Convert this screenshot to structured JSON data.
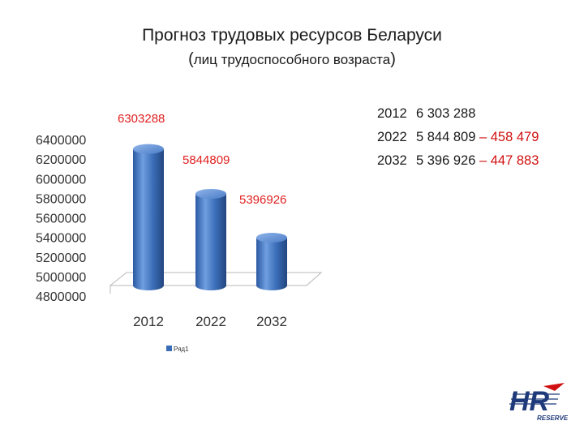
{
  "title": "Прогноз трудовых ресурсов Беларуси",
  "subtitle": "лиц трудоспособного возраста",
  "chart_data": {
    "type": "bar",
    "categories": [
      "2012",
      "2022",
      "2032"
    ],
    "series": [
      {
        "name": "Ряд1",
        "values": [
          6303288,
          5844809,
          5396926
        ]
      }
    ],
    "data_labels": [
      "6303288",
      "5844809",
      "5396926"
    ],
    "y_ticks": [
      "4800000",
      "5000000",
      "5200000",
      "5400000",
      "5600000",
      "5800000",
      "6000000",
      "6200000",
      "6400000"
    ],
    "ylim": [
      4800000,
      6400000
    ],
    "legend": "bottom",
    "bar_color": "#3a6db8",
    "label_color": "#e02020"
  },
  "stats": [
    {
      "year": "2012",
      "value": "6 303 288",
      "delta": ""
    },
    {
      "year": "2022",
      "value": "5 844 809",
      "delta": " – 458 479"
    },
    {
      "year": "2032",
      "value": "5 396 926",
      "delta": " – 447 883"
    }
  ],
  "logo": {
    "letters": "HR",
    "word": "RESERVE"
  }
}
